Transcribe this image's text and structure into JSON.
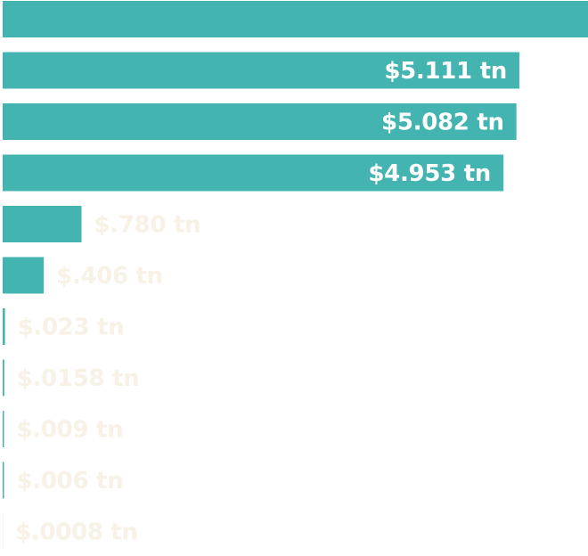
{
  "chart_data": {
    "type": "bar",
    "orientation": "horizontal",
    "colors": {
      "bar": "#43b4b0",
      "label_inside": "#ffffff",
      "label_outside": "#f7f1e6"
    },
    "categories": [
      "",
      "",
      "",
      "",
      "",
      "",
      "",
      "",
      "",
      "",
      ""
    ],
    "values": [
      5.79,
      5.111,
      5.082,
      4.953,
      0.78,
      0.406,
      0.023,
      0.0158,
      0.009,
      0.006,
      0.0008
    ],
    "labels": [
      "",
      "$5.111 tn",
      "$5.082 tn",
      "$4.953 tn",
      "$.780 tn",
      "$.406 tn",
      "$.023 tn",
      "$.0158 tn",
      "$.009 tn",
      "$.006 tn",
      "$.0008 tn"
    ],
    "xlim": [
      0,
      5.79
    ],
    "grid": false,
    "legend": "none"
  }
}
